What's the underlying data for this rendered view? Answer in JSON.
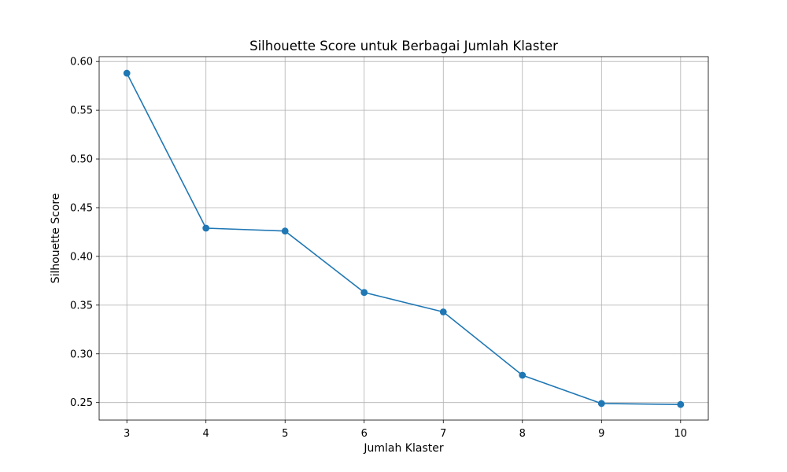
{
  "chart_data": {
    "type": "line",
    "title": "Silhouette Score untuk Berbagai Jumlah Klaster",
    "xlabel": "Jumlah Klaster",
    "ylabel": "Silhouette Score",
    "x": [
      3,
      4,
      5,
      6,
      7,
      8,
      9,
      10
    ],
    "x_tick_labels": [
      "3",
      "4",
      "5",
      "6",
      "7",
      "8",
      "9",
      "10"
    ],
    "y_ticks": [
      0.25,
      0.3,
      0.35,
      0.4,
      0.45,
      0.5,
      0.55,
      0.6
    ],
    "y_tick_labels": [
      "0.25",
      "0.30",
      "0.35",
      "0.40",
      "0.45",
      "0.50",
      "0.55",
      "0.60"
    ],
    "xlim": [
      2.65,
      10.35
    ],
    "ylim": [
      0.232,
      0.605
    ],
    "grid": true,
    "series": [
      {
        "values": [
          0.588,
          0.429,
          0.426,
          0.363,
          0.343,
          0.278,
          0.249,
          0.248
        ],
        "color": "#1f77b4",
        "marker": "circle"
      }
    ]
  }
}
